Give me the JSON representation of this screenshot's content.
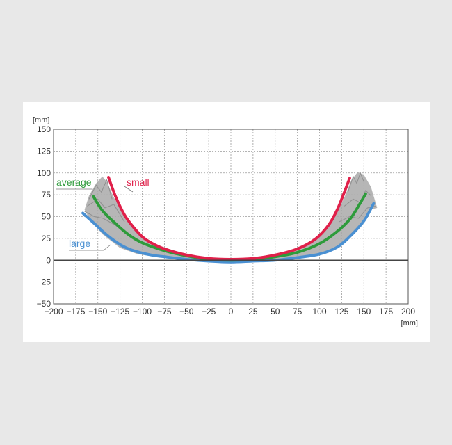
{
  "chart_data": {
    "type": "line",
    "y_unit": "[mm]",
    "x_unit": "[mm]",
    "xlim": [
      -200,
      200
    ],
    "ylim": [
      -50,
      150
    ],
    "x_ticks": [
      -200,
      -175,
      -150,
      -125,
      -100,
      -75,
      -50,
      -25,
      0,
      25,
      50,
      75,
      100,
      125,
      150,
      175,
      200
    ],
    "y_ticks": [
      -50,
      -25,
      0,
      25,
      50,
      75,
      100,
      125,
      150
    ],
    "x_tick_labels": [
      "−200",
      "−175",
      "−150",
      "−125",
      "−100",
      "−75",
      "−50",
      "−25",
      "0",
      "25",
      "50",
      "75",
      "100",
      "125",
      "150",
      "175",
      "200"
    ],
    "y_tick_labels": [
      "−50",
      "−25",
      "0",
      "25",
      "50",
      "75",
      "100",
      "125",
      "150"
    ],
    "grid": true,
    "series": [
      {
        "name": "small",
        "color": "#e0204a",
        "points": [
          [
            -138,
            95
          ],
          [
            -130,
            73
          ],
          [
            -120,
            52
          ],
          [
            -110,
            38
          ],
          [
            -100,
            27
          ],
          [
            -90,
            20
          ],
          [
            -75,
            13
          ],
          [
            -50,
            6
          ],
          [
            -25,
            2
          ],
          [
            0,
            1
          ],
          [
            25,
            2
          ],
          [
            50,
            6
          ],
          [
            75,
            13
          ],
          [
            95,
            24
          ],
          [
            110,
            40
          ],
          [
            120,
            58
          ],
          [
            128,
            78
          ],
          [
            134,
            94
          ]
        ]
      },
      {
        "name": "average",
        "color": "#2e9b3b",
        "points": [
          [
            -155,
            73
          ],
          [
            -145,
            57
          ],
          [
            -130,
            42
          ],
          [
            -115,
            29
          ],
          [
            -100,
            20
          ],
          [
            -75,
            11
          ],
          [
            -50,
            5
          ],
          [
            -25,
            1
          ],
          [
            0,
            0
          ],
          [
            25,
            1
          ],
          [
            50,
            4
          ],
          [
            75,
            9
          ],
          [
            100,
            19
          ],
          [
            120,
            33
          ],
          [
            135,
            48
          ],
          [
            145,
            64
          ],
          [
            152,
            76
          ]
        ]
      },
      {
        "name": "large",
        "color": "#4a90d2",
        "points": [
          [
            -167,
            54
          ],
          [
            -155,
            43
          ],
          [
            -140,
            29
          ],
          [
            -125,
            18
          ],
          [
            -110,
            11
          ],
          [
            -90,
            6
          ],
          [
            -75,
            4
          ],
          [
            -50,
            1
          ],
          [
            -25,
            -1
          ],
          [
            0,
            -2
          ],
          [
            25,
            -1
          ],
          [
            50,
            0
          ],
          [
            75,
            3
          ],
          [
            100,
            7
          ],
          [
            120,
            15
          ],
          [
            135,
            28
          ],
          [
            150,
            45
          ],
          [
            161,
            65
          ]
        ]
      }
    ],
    "spread_envelope": {
      "color": "#a9a9a9",
      "left": [
        [
          -165,
          58
        ],
        [
          -160,
          74
        ],
        [
          -152,
          88
        ],
        [
          -145,
          96
        ],
        [
          -140,
          90
        ],
        [
          -132,
          72
        ],
        [
          -120,
          52
        ],
        [
          -105,
          32
        ],
        [
          -85,
          18
        ],
        [
          -60,
          8
        ],
        [
          -30,
          3
        ],
        [
          0,
          1
        ],
        [
          -30,
          -1
        ],
        [
          -60,
          1
        ],
        [
          -85,
          4
        ],
        [
          -105,
          7
        ],
        [
          -125,
          14
        ],
        [
          -145,
          30
        ],
        [
          -160,
          48
        ]
      ],
      "right": [
        [
          165,
          60
        ],
        [
          158,
          84
        ],
        [
          150,
          98
        ],
        [
          143,
          101
        ],
        [
          136,
          92
        ],
        [
          128,
          72
        ],
        [
          118,
          50
        ],
        [
          102,
          30
        ],
        [
          80,
          15
        ],
        [
          55,
          7
        ],
        [
          28,
          2
        ],
        [
          0,
          1
        ],
        [
          28,
          -1
        ],
        [
          55,
          1
        ],
        [
          80,
          3
        ],
        [
          102,
          8
        ],
        [
          122,
          17
        ],
        [
          142,
          36
        ],
        [
          157,
          58
        ]
      ]
    }
  }
}
